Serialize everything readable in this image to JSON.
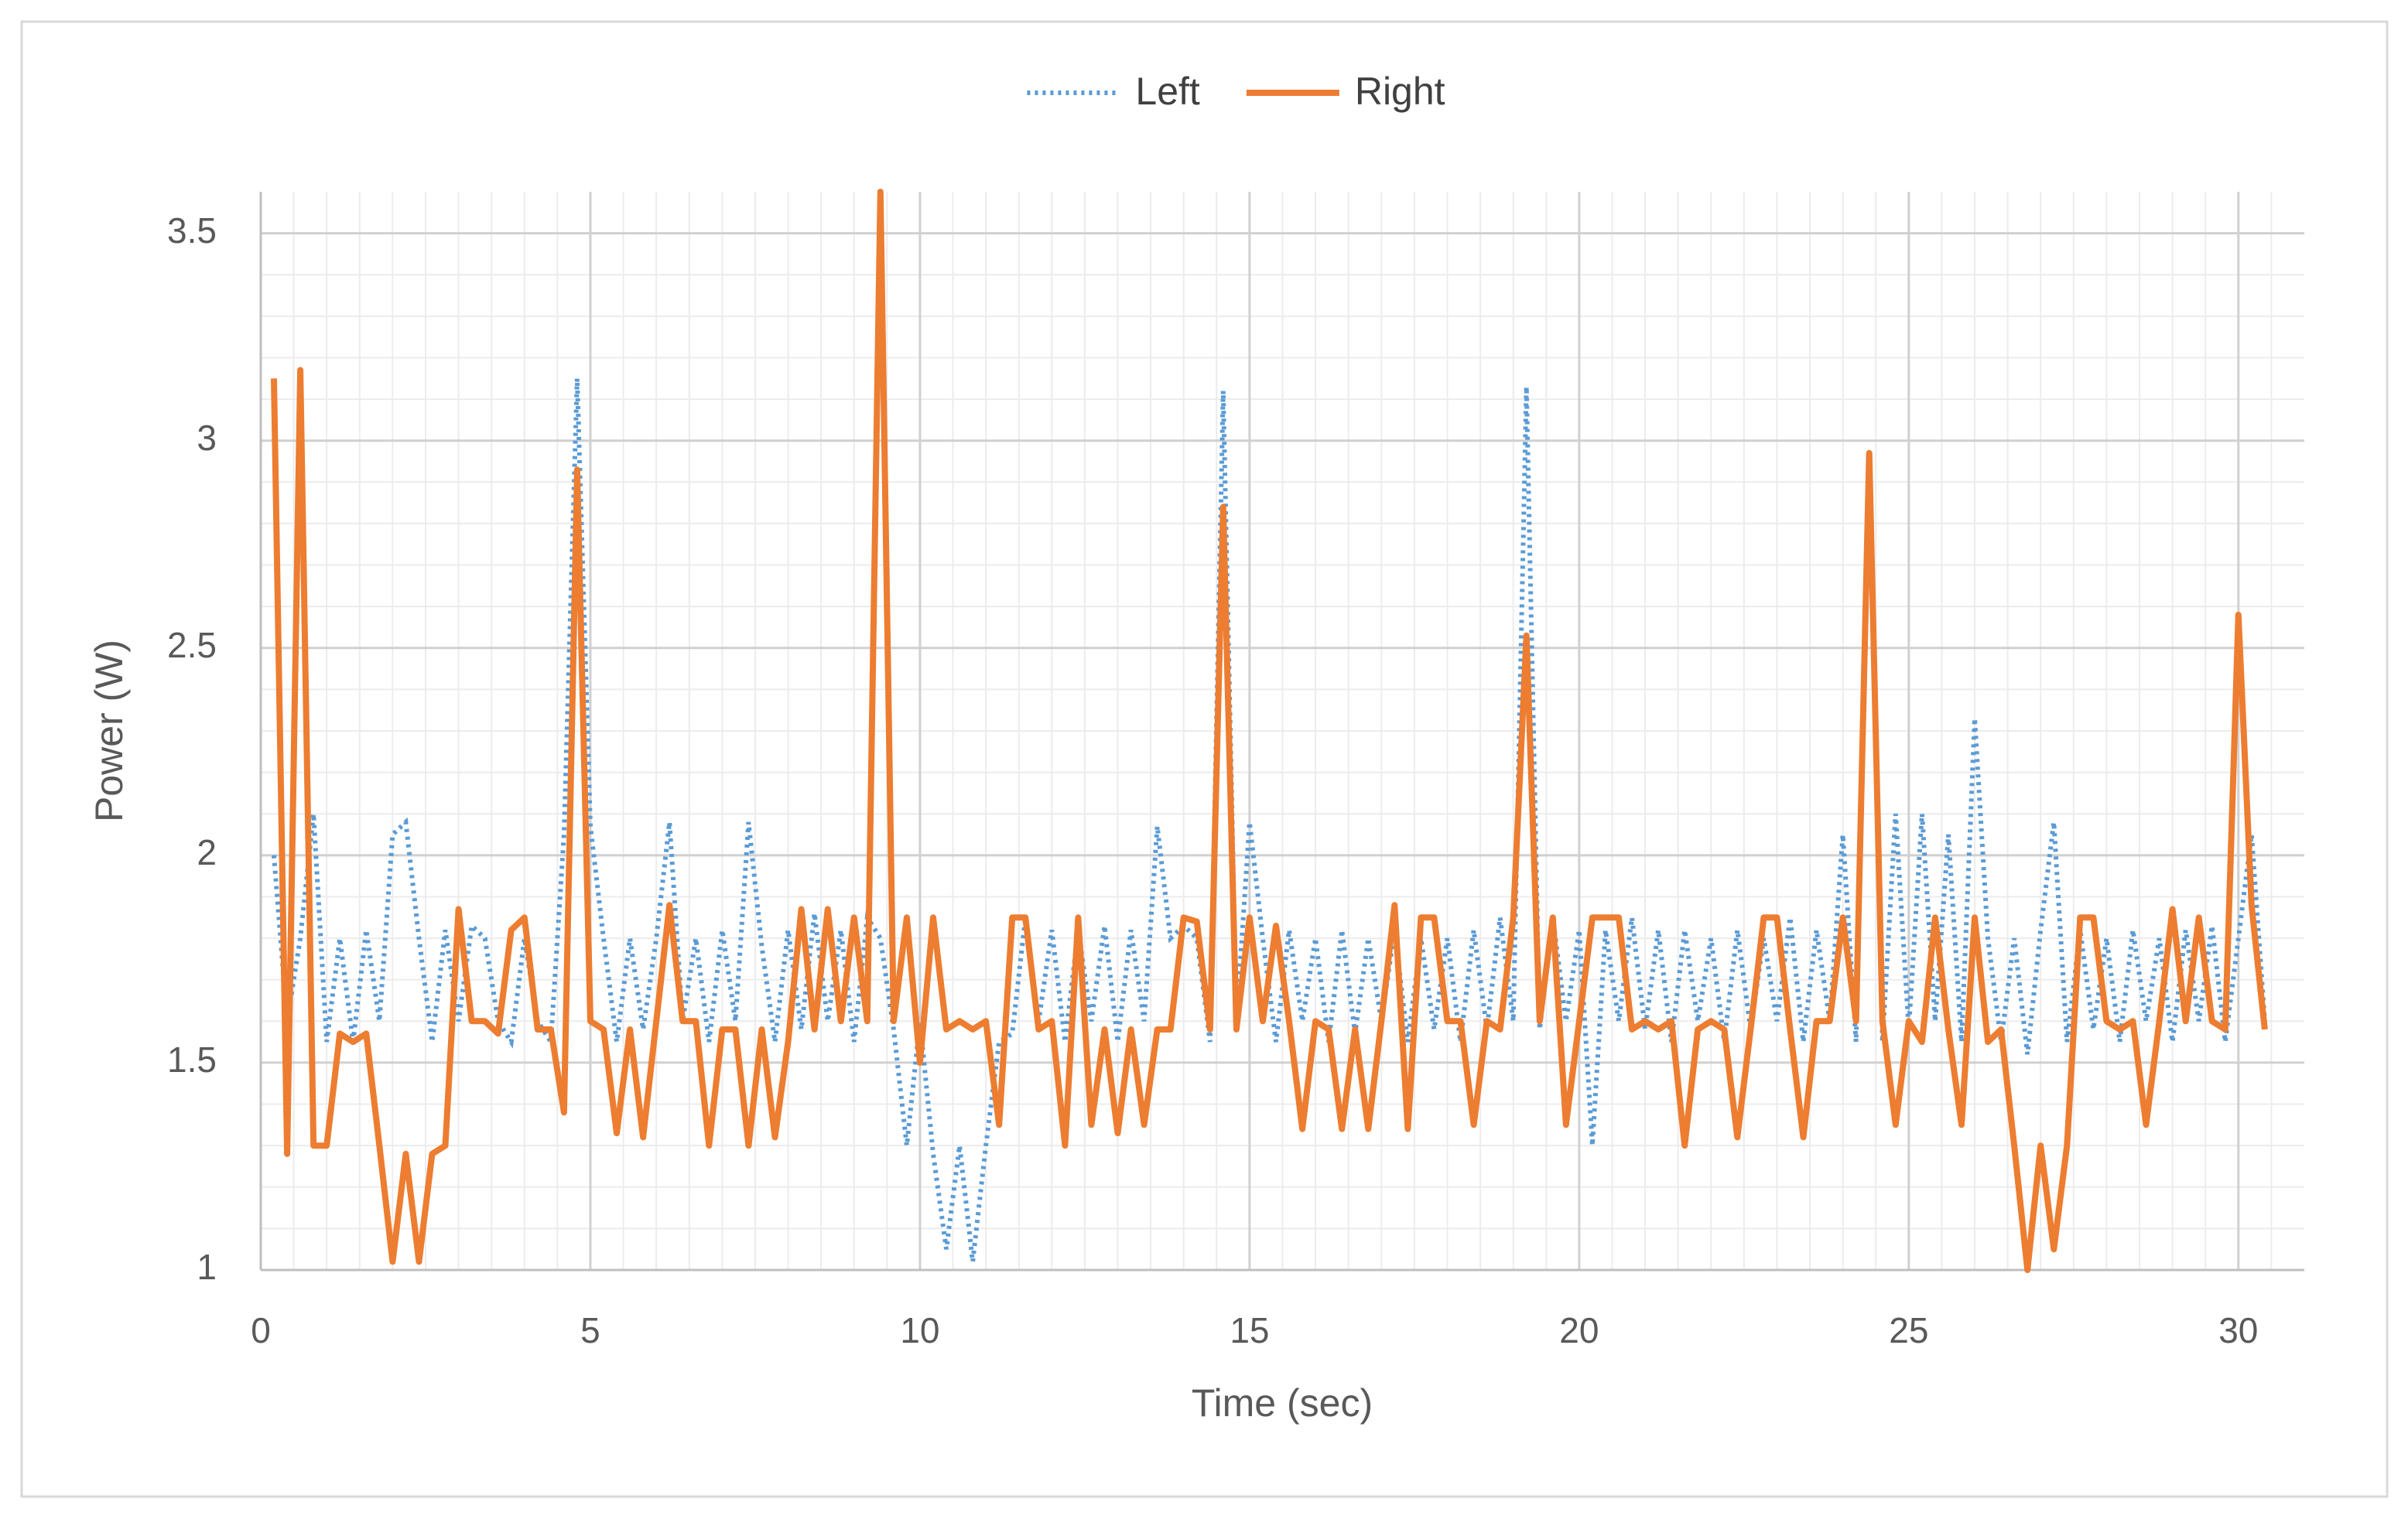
{
  "chart_data": {
    "type": "line",
    "x_label": "Time (sec)",
    "y_label": "Power (W)",
    "xlim": [
      0,
      31
    ],
    "ylim": [
      1,
      3.6
    ],
    "xticks": [
      0,
      5,
      10,
      15,
      20,
      25,
      30
    ],
    "yticks": [
      1,
      1.5,
      2,
      2.5,
      3,
      3.5
    ],
    "grid": true,
    "minor_grid": {
      "x": 0.5,
      "y": 0.1
    },
    "legend": "top",
    "x": [
      0.2,
      0.4,
      0.6,
      0.8,
      1.0,
      1.2,
      1.4,
      1.6,
      1.8,
      2.0,
      2.2,
      2.4,
      2.6,
      2.8,
      3.0,
      3.2,
      3.4,
      3.6,
      3.8,
      4.0,
      4.2,
      4.4,
      4.6,
      4.8,
      5.0,
      5.2,
      5.4,
      5.6,
      5.8,
      6.0,
      6.2,
      6.4,
      6.6,
      6.8,
      7.0,
      7.2,
      7.4,
      7.6,
      7.8,
      8.0,
      8.2,
      8.4,
      8.6,
      8.8,
      9.0,
      9.2,
      9.4,
      9.6,
      9.8,
      10.0,
      10.2,
      10.4,
      10.6,
      10.8,
      11.0,
      11.2,
      11.4,
      11.6,
      11.8,
      12.0,
      12.2,
      12.4,
      12.6,
      12.8,
      13.0,
      13.2,
      13.4,
      13.6,
      13.8,
      14.0,
      14.2,
      14.4,
      14.6,
      14.8,
      15.0,
      15.2,
      15.4,
      15.6,
      15.8,
      16.0,
      16.2,
      16.4,
      16.6,
      16.8,
      17.0,
      17.2,
      17.4,
      17.6,
      17.8,
      18.0,
      18.2,
      18.4,
      18.6,
      18.8,
      19.0,
      19.2,
      19.4,
      19.6,
      19.8,
      20.0,
      20.2,
      20.4,
      20.6,
      20.8,
      21.0,
      21.2,
      21.4,
      21.6,
      21.8,
      22.0,
      22.2,
      22.4,
      22.6,
      22.8,
      23.0,
      23.2,
      23.4,
      23.6,
      23.8,
      24.0,
      24.2,
      24.4,
      24.6,
      24.8,
      25.0,
      25.2,
      25.4,
      25.6,
      25.8,
      26.0,
      26.2,
      26.4,
      26.6,
      26.8,
      27.0,
      27.2,
      27.4,
      27.6,
      27.8,
      28.0,
      28.2,
      28.4,
      28.6,
      28.8,
      29.0,
      29.2,
      29.4,
      29.6,
      29.8,
      30.0,
      30.2,
      30.4
    ],
    "series": [
      {
        "name": "Left",
        "color": "#5b9bd5",
        "style": "dotted",
        "values": [
          2.0,
          1.6,
          1.8,
          2.1,
          1.55,
          1.8,
          1.55,
          1.82,
          1.6,
          2.05,
          2.08,
          1.8,
          1.55,
          1.82,
          1.6,
          1.83,
          1.8,
          1.6,
          1.55,
          1.8,
          1.6,
          1.55,
          2.05,
          3.15,
          2.07,
          1.8,
          1.55,
          1.8,
          1.58,
          1.8,
          2.08,
          1.6,
          1.8,
          1.55,
          1.82,
          1.6,
          2.08,
          1.78,
          1.55,
          1.82,
          1.58,
          1.86,
          1.6,
          1.82,
          1.55,
          1.85,
          1.8,
          1.58,
          1.3,
          1.6,
          1.28,
          1.05,
          1.3,
          1.02,
          1.3,
          1.55,
          1.57,
          1.85,
          1.6,
          1.82,
          1.55,
          1.82,
          1.6,
          1.83,
          1.55,
          1.82,
          1.6,
          2.07,
          1.8,
          1.83,
          1.8,
          1.55,
          3.12,
          1.6,
          2.08,
          1.8,
          1.55,
          1.82,
          1.6,
          1.8,
          1.55,
          1.82,
          1.57,
          1.8,
          1.6,
          1.82,
          1.55,
          1.8,
          1.58,
          1.8,
          1.55,
          1.82,
          1.58,
          1.85,
          1.6,
          3.13,
          1.58,
          1.85,
          1.6,
          1.82,
          1.3,
          1.82,
          1.6,
          1.85,
          1.58,
          1.82,
          1.55,
          1.82,
          1.6,
          1.8,
          1.55,
          1.82,
          1.58,
          1.8,
          1.6,
          1.85,
          1.55,
          1.82,
          1.6,
          2.05,
          1.55,
          2.95,
          1.55,
          2.1,
          1.58,
          2.1,
          1.6,
          2.05,
          1.55,
          2.33,
          1.8,
          1.55,
          1.8,
          1.52,
          1.82,
          2.08,
          1.55,
          1.82,
          1.58,
          1.8,
          1.55,
          1.82,
          1.6,
          1.8,
          1.55,
          1.82,
          1.6,
          1.83,
          1.55,
          1.8,
          2.05,
          1.6
        ]
      },
      {
        "name": "Right",
        "color": "#ed7d31",
        "style": "solid",
        "values": [
          3.15,
          1.28,
          3.17,
          1.3,
          1.3,
          1.57,
          1.55,
          1.57,
          1.3,
          1.02,
          1.28,
          1.02,
          1.28,
          1.3,
          1.87,
          1.6,
          1.6,
          1.57,
          1.82,
          1.85,
          1.58,
          1.58,
          1.38,
          2.93,
          1.6,
          1.58,
          1.33,
          1.58,
          1.32,
          1.6,
          1.88,
          1.6,
          1.6,
          1.3,
          1.58,
          1.58,
          1.3,
          1.58,
          1.32,
          1.55,
          1.87,
          1.58,
          1.87,
          1.6,
          1.85,
          1.6,
          3.6,
          1.6,
          1.85,
          1.5,
          1.85,
          1.58,
          1.6,
          1.58,
          1.6,
          1.35,
          1.85,
          1.85,
          1.58,
          1.6,
          1.3,
          1.85,
          1.35,
          1.58,
          1.33,
          1.58,
          1.35,
          1.58,
          1.58,
          1.85,
          1.84,
          1.58,
          2.84,
          1.58,
          1.85,
          1.6,
          1.83,
          1.6,
          1.34,
          1.6,
          1.58,
          1.34,
          1.58,
          1.34,
          1.6,
          1.88,
          1.34,
          1.85,
          1.85,
          1.6,
          1.6,
          1.35,
          1.6,
          1.58,
          1.85,
          2.53,
          1.6,
          1.85,
          1.35,
          1.6,
          1.85,
          1.85,
          1.85,
          1.58,
          1.6,
          1.58,
          1.6,
          1.3,
          1.58,
          1.6,
          1.58,
          1.32,
          1.58,
          1.85,
          1.85,
          1.58,
          1.32,
          1.6,
          1.6,
          1.85,
          1.6,
          2.97,
          1.6,
          1.35,
          1.6,
          1.55,
          1.85,
          1.58,
          1.35,
          1.85,
          1.55,
          1.58,
          1.3,
          1.0,
          1.3,
          1.05,
          1.3,
          1.85,
          1.85,
          1.6,
          1.58,
          1.6,
          1.35,
          1.6,
          1.87,
          1.6,
          1.85,
          1.6,
          1.58,
          2.58,
          1.88,
          1.58
        ]
      }
    ]
  }
}
